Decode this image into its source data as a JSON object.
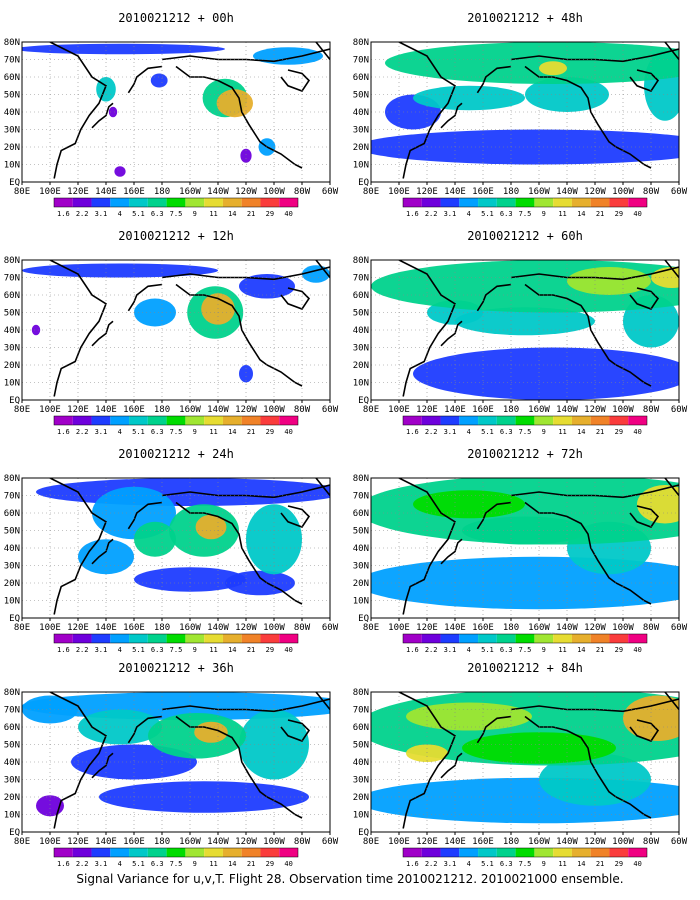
{
  "figure": {
    "caption": "Signal Variance for u,v,T. Flight 28. Observation time 2010021212. 2010021000 ensemble."
  },
  "colorbar": {
    "levels": [
      "1.6",
      "2.2",
      "3.1",
      "4",
      "5.1",
      "6.3",
      "7.5",
      "9",
      "11",
      "14",
      "21",
      "29",
      "40"
    ],
    "colors": [
      "#a000c8",
      "#6e00dc",
      "#1e3cff",
      "#00a0ff",
      "#00c8c8",
      "#00d28c",
      "#00dc00",
      "#a0e632",
      "#e6dc32",
      "#e6af2d",
      "#f08228",
      "#fa3c3c",
      "#f00082"
    ]
  },
  "chart_data": [
    {
      "type": "heatmap",
      "title": "2010021212 + 00h",
      "xticks": [
        "80E",
        "100E",
        "120E",
        "140E",
        "160E",
        "180",
        "160W",
        "140W",
        "120W",
        "100W",
        "80W",
        "60W"
      ],
      "yticks": [
        "80N",
        "70N",
        "60N",
        "50N",
        "40N",
        "30N",
        "20N",
        "10N",
        "EQ"
      ],
      "xrange": [
        "80E",
        "60W"
      ],
      "yrange": [
        "EQ",
        "80N"
      ],
      "grid": true,
      "blobs": [
        {
          "lon": 140,
          "lat": 53,
          "level": 4,
          "w": 14,
          "h": 14
        },
        {
          "lon": 232,
          "lat": 45,
          "level": 9,
          "w": 26,
          "h": 16
        },
        {
          "lon": 225,
          "lat": 48,
          "level": 5,
          "w": 32,
          "h": 22
        },
        {
          "lon": 150,
          "lat": 76,
          "level": 2,
          "w": 150,
          "h": 6
        },
        {
          "lon": 178,
          "lat": 58,
          "level": 2,
          "w": 12,
          "h": 8
        },
        {
          "lon": 270,
          "lat": 72,
          "level": 3,
          "w": 50,
          "h": 10
        },
        {
          "lon": 255,
          "lat": 20,
          "level": 3,
          "w": 12,
          "h": 10
        },
        {
          "lon": 240,
          "lat": 15,
          "level": 1,
          "w": 8,
          "h": 8
        },
        {
          "lon": 145,
          "lat": 40,
          "level": 1,
          "w": 6,
          "h": 6
        },
        {
          "lon": 150,
          "lat": 6,
          "level": 1,
          "w": 8,
          "h": 6
        }
      ]
    },
    {
      "type": "heatmap",
      "title": "2010021212 + 12h",
      "xticks": [
        "80E",
        "100E",
        "120E",
        "140E",
        "160E",
        "180",
        "160W",
        "140W",
        "120W",
        "100W",
        "80W",
        "60W"
      ],
      "yticks": [
        "80N",
        "70N",
        "60N",
        "50N",
        "40N",
        "30N",
        "20N",
        "10N",
        "EQ"
      ],
      "xrange": [
        "80E",
        "60W"
      ],
      "yrange": [
        "EQ",
        "80N"
      ],
      "grid": true,
      "blobs": [
        {
          "lon": 220,
          "lat": 52,
          "level": 9,
          "w": 24,
          "h": 18
        },
        {
          "lon": 218,
          "lat": 50,
          "level": 5,
          "w": 40,
          "h": 30
        },
        {
          "lon": 150,
          "lat": 74,
          "level": 2,
          "w": 140,
          "h": 8
        },
        {
          "lon": 175,
          "lat": 50,
          "level": 3,
          "w": 30,
          "h": 16
        },
        {
          "lon": 255,
          "lat": 65,
          "level": 2,
          "w": 40,
          "h": 14
        },
        {
          "lon": 290,
          "lat": 72,
          "level": 3,
          "w": 20,
          "h": 10
        },
        {
          "lon": 240,
          "lat": 15,
          "level": 2,
          "w": 10,
          "h": 10
        },
        {
          "lon": 90,
          "lat": 40,
          "level": 1,
          "w": 6,
          "h": 6
        }
      ]
    },
    {
      "type": "heatmap",
      "title": "2010021212 + 24h",
      "xticks": [
        "80E",
        "100E",
        "120E",
        "140E",
        "160E",
        "180",
        "160W",
        "140W",
        "120W",
        "100W",
        "80W",
        "60W"
      ],
      "yticks": [
        "80N",
        "70N",
        "60N",
        "50N",
        "40N",
        "30N",
        "20N",
        "10N",
        "EQ"
      ],
      "xrange": [
        "80E",
        "60W"
      ],
      "yrange": [
        "EQ",
        "80N"
      ],
      "grid": true,
      "blobs": [
        {
          "lon": 215,
          "lat": 52,
          "level": 9,
          "w": 22,
          "h": 14
        },
        {
          "lon": 210,
          "lat": 50,
          "level": 5,
          "w": 50,
          "h": 30
        },
        {
          "lon": 175,
          "lat": 45,
          "level": 5,
          "w": 30,
          "h": 20
        },
        {
          "lon": 160,
          "lat": 60,
          "level": 3,
          "w": 60,
          "h": 30
        },
        {
          "lon": 200,
          "lat": 72,
          "level": 2,
          "w": 220,
          "h": 16
        },
        {
          "lon": 260,
          "lat": 45,
          "level": 4,
          "w": 40,
          "h": 40
        },
        {
          "lon": 140,
          "lat": 35,
          "level": 3,
          "w": 40,
          "h": 20
        },
        {
          "lon": 200,
          "lat": 22,
          "level": 2,
          "w": 80,
          "h": 14
        },
        {
          "lon": 250,
          "lat": 20,
          "level": 2,
          "w": 50,
          "h": 14
        }
      ]
    },
    {
      "type": "heatmap",
      "title": "2010021212 + 36h",
      "xticks": [
        "80E",
        "100E",
        "120E",
        "140E",
        "160E",
        "180",
        "160W",
        "140W",
        "120W",
        "100W",
        "80W",
        "60W"
      ],
      "yticks": [
        "80N",
        "70N",
        "60N",
        "50N",
        "40N",
        "30N",
        "20N",
        "10N",
        "EQ"
      ],
      "xrange": [
        "80E",
        "60W"
      ],
      "yrange": [
        "EQ",
        "80N"
      ],
      "grid": true,
      "blobs": [
        {
          "lon": 215,
          "lat": 57,
          "level": 9,
          "w": 24,
          "h": 12
        },
        {
          "lon": 205,
          "lat": 55,
          "level": 5,
          "w": 70,
          "h": 26
        },
        {
          "lon": 150,
          "lat": 60,
          "level": 4,
          "w": 60,
          "h": 20
        },
        {
          "lon": 100,
          "lat": 70,
          "level": 3,
          "w": 40,
          "h": 16
        },
        {
          "lon": 200,
          "lat": 72,
          "level": 3,
          "w": 240,
          "h": 16
        },
        {
          "lon": 260,
          "lat": 50,
          "level": 4,
          "w": 50,
          "h": 40
        },
        {
          "lon": 160,
          "lat": 40,
          "level": 2,
          "w": 90,
          "h": 20
        },
        {
          "lon": 210,
          "lat": 20,
          "level": 2,
          "w": 150,
          "h": 18
        },
        {
          "lon": 100,
          "lat": 15,
          "level": 1,
          "w": 20,
          "h": 12
        }
      ]
    },
    {
      "type": "heatmap",
      "title": "2010021212 + 48h",
      "xticks": [
        "80E",
        "100E",
        "120E",
        "140E",
        "160E",
        "180",
        "160W",
        "140W",
        "120W",
        "100W",
        "80W",
        "60W"
      ],
      "yticks": [
        "80N",
        "70N",
        "60N",
        "50N",
        "40N",
        "30N",
        "20N",
        "10N",
        "EQ"
      ],
      "xrange": [
        "80E",
        "60W"
      ],
      "yrange": [
        "EQ",
        "80N"
      ],
      "grid": true,
      "blobs": [
        {
          "lon": 210,
          "lat": 68,
          "level": 5,
          "w": 240,
          "h": 24
        },
        {
          "lon": 150,
          "lat": 48,
          "level": 4,
          "w": 80,
          "h": 14
        },
        {
          "lon": 220,
          "lat": 50,
          "level": 4,
          "w": 60,
          "h": 20
        },
        {
          "lon": 210,
          "lat": 65,
          "level": 8,
          "w": 20,
          "h": 8
        },
        {
          "lon": 290,
          "lat": 55,
          "level": 4,
          "w": 30,
          "h": 40
        },
        {
          "lon": 200,
          "lat": 20,
          "level": 2,
          "w": 260,
          "h": 20
        },
        {
          "lon": 110,
          "lat": 40,
          "level": 2,
          "w": 40,
          "h": 20
        }
      ]
    },
    {
      "type": "heatmap",
      "title": "2010021212 + 60h",
      "xticks": [
        "80E",
        "100E",
        "120E",
        "140E",
        "160E",
        "180",
        "160W",
        "140W",
        "120W",
        "100W",
        "80W",
        "60W"
      ],
      "yticks": [
        "80N",
        "70N",
        "60N",
        "50N",
        "40N",
        "30N",
        "20N",
        "10N",
        "EQ"
      ],
      "xrange": [
        "80E",
        "60W"
      ],
      "yrange": [
        "EQ",
        "80N"
      ],
      "grid": true,
      "blobs": [
        {
          "lon": 210,
          "lat": 65,
          "level": 5,
          "w": 260,
          "h": 30
        },
        {
          "lon": 250,
          "lat": 68,
          "level": 7,
          "w": 60,
          "h": 16
        },
        {
          "lon": 295,
          "lat": 70,
          "level": 8,
          "w": 30,
          "h": 12
        },
        {
          "lon": 190,
          "lat": 45,
          "level": 4,
          "w": 100,
          "h": 16
        },
        {
          "lon": 140,
          "lat": 50,
          "level": 4,
          "w": 40,
          "h": 14
        },
        {
          "lon": 280,
          "lat": 45,
          "level": 4,
          "w": 40,
          "h": 30
        },
        {
          "lon": 210,
          "lat": 15,
          "level": 2,
          "w": 200,
          "h": 30
        }
      ]
    },
    {
      "type": "heatmap",
      "title": "2010021212 + 72h",
      "xticks": [
        "80E",
        "100E",
        "120E",
        "140E",
        "160E",
        "180",
        "160W",
        "140W",
        "120W",
        "100W",
        "80W",
        "60W"
      ],
      "yticks": [
        "80N",
        "70N",
        "60N",
        "50N",
        "40N",
        "30N",
        "20N",
        "10N",
        "EQ"
      ],
      "xrange": [
        "80E",
        "60W"
      ],
      "yrange": [
        "EQ",
        "80N"
      ],
      "grid": true,
      "blobs": [
        {
          "lon": 210,
          "lat": 62,
          "level": 5,
          "w": 280,
          "h": 40
        },
        {
          "lon": 290,
          "lat": 65,
          "level": 8,
          "w": 40,
          "h": 22
        },
        {
          "lon": 150,
          "lat": 65,
          "level": 6,
          "w": 80,
          "h": 16
        },
        {
          "lon": 190,
          "lat": 50,
          "level": 5,
          "w": 90,
          "h": 16
        },
        {
          "lon": 250,
          "lat": 40,
          "level": 4,
          "w": 60,
          "h": 30
        },
        {
          "lon": 200,
          "lat": 20,
          "level": 3,
          "w": 260,
          "h": 30
        }
      ]
    },
    {
      "type": "heatmap",
      "title": "2010021212 + 84h",
      "xticks": [
        "80E",
        "100E",
        "120E",
        "140E",
        "160E",
        "180",
        "160W",
        "140W",
        "120W",
        "100W",
        "80W",
        "60W"
      ],
      "yticks": [
        "80N",
        "70N",
        "60N",
        "50N",
        "40N",
        "30N",
        "20N",
        "10N",
        "EQ"
      ],
      "xrange": [
        "80E",
        "60W"
      ],
      "yrange": [
        "EQ",
        "80N"
      ],
      "grid": true,
      "blobs": [
        {
          "lon": 210,
          "lat": 60,
          "level": 5,
          "w": 280,
          "h": 44
        },
        {
          "lon": 285,
          "lat": 65,
          "level": 9,
          "w": 50,
          "h": 26
        },
        {
          "lon": 150,
          "lat": 66,
          "level": 7,
          "w": 90,
          "h": 16
        },
        {
          "lon": 200,
          "lat": 48,
          "level": 6,
          "w": 110,
          "h": 18
        },
        {
          "lon": 120,
          "lat": 45,
          "level": 8,
          "w": 30,
          "h": 10
        },
        {
          "lon": 240,
          "lat": 30,
          "level": 4,
          "w": 80,
          "h": 30
        },
        {
          "lon": 200,
          "lat": 18,
          "level": 3,
          "w": 260,
          "h": 26
        }
      ]
    }
  ]
}
